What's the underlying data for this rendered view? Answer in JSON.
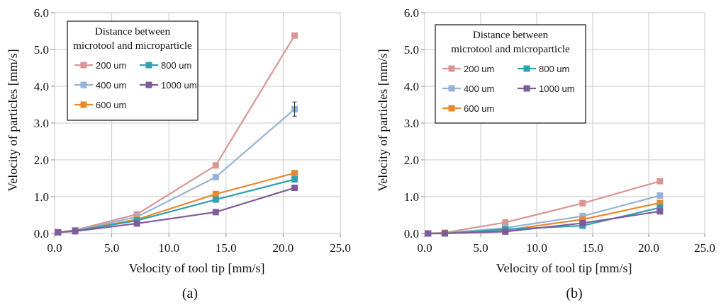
{
  "chart_data": [
    {
      "type": "line",
      "panel": "a",
      "panel_label": "(a)",
      "title": "",
      "xlabel": "Velocity of tool tip [mm/s]",
      "ylabel": "Velocity of particles [mm/s]",
      "xlim": [
        0,
        25
      ],
      "ylim": [
        0,
        6
      ],
      "xticks": [
        0,
        5,
        10,
        15,
        20,
        25
      ],
      "xtick_labels": [
        "0.0",
        "5.0",
        "10.0",
        "15.0",
        "20.0",
        "25.0"
      ],
      "yticks": [
        0,
        1,
        2,
        3,
        4,
        5,
        6
      ],
      "ytick_labels": [
        "0.0",
        "1.0",
        "2.0",
        "3.0",
        "4.0",
        "5.0",
        "6.0"
      ],
      "grid": true,
      "legend": {
        "title_lines": [
          "Distance between",
          "microtool and microparticle"
        ],
        "placement": "top-left"
      },
      "series": [
        {
          "name": "200 um",
          "color": "#D99694",
          "x": [
            0.3,
            1.8,
            7.2,
            14.1,
            21.0
          ],
          "values": [
            0.03,
            0.09,
            0.52,
            1.85,
            5.38
          ]
        },
        {
          "name": "400 um",
          "color": "#95B3D7",
          "x": [
            0.3,
            1.8,
            7.2,
            14.1,
            21.0
          ],
          "values": [
            0.03,
            0.08,
            0.45,
            1.53,
            3.38
          ]
        },
        {
          "name": "600 um",
          "color": "#E6892F",
          "x": [
            0.3,
            1.8,
            7.2,
            14.1,
            21.0
          ],
          "values": [
            0.03,
            0.07,
            0.38,
            1.07,
            1.64
          ]
        },
        {
          "name": "800 um",
          "color": "#31A0B1",
          "x": [
            0.3,
            1.8,
            7.2,
            14.1,
            21.0
          ],
          "values": [
            0.03,
            0.07,
            0.35,
            0.92,
            1.47
          ]
        },
        {
          "name": "1000 um",
          "color": "#7F5B9C",
          "x": [
            0.3,
            1.8,
            7.2,
            14.1,
            21.0
          ],
          "values": [
            0.03,
            0.06,
            0.27,
            0.58,
            1.24
          ]
        }
      ]
    },
    {
      "type": "line",
      "panel": "b",
      "panel_label": "(b)",
      "title": "",
      "xlabel": "Velocity of tool tip [mm/s]",
      "ylabel": "Velocity of particles [mm/s]",
      "xlim": [
        0,
        25
      ],
      "ylim": [
        0,
        6
      ],
      "xticks": [
        0,
        5,
        10,
        15,
        20,
        25
      ],
      "xtick_labels": [
        "0.0",
        "5.0",
        "10.0",
        "15.0",
        "20.0",
        "25.0"
      ],
      "yticks": [
        0,
        1,
        2,
        3,
        4,
        5,
        6
      ],
      "ytick_labels": [
        "0.0",
        "1.0",
        "2.0",
        "3.0",
        "4.0",
        "5.0",
        "6.0"
      ],
      "grid": true,
      "legend": {
        "title_lines": [
          "Distance between",
          "microtool and microparticle"
        ],
        "placement": "top-left"
      },
      "series": [
        {
          "name": "200 um",
          "color": "#D99694",
          "x": [
            0.3,
            1.8,
            7.2,
            14.1,
            21.0
          ],
          "values": [
            0.0,
            0.02,
            0.3,
            0.82,
            1.42
          ]
        },
        {
          "name": "400 um",
          "color": "#95B3D7",
          "x": [
            0.3,
            1.8,
            7.2,
            14.1,
            21.0
          ],
          "values": [
            0.0,
            0.01,
            0.15,
            0.47,
            1.03
          ]
        },
        {
          "name": "600 um",
          "color": "#E6892F",
          "x": [
            0.3,
            1.8,
            7.2,
            14.1,
            21.0
          ],
          "values": [
            0.0,
            0.01,
            0.09,
            0.38,
            0.83
          ]
        },
        {
          "name": "800 um",
          "color": "#31A0B1",
          "x": [
            0.3,
            1.8,
            7.2,
            14.1,
            21.0
          ],
          "values": [
            0.0,
            0.0,
            0.11,
            0.21,
            0.7
          ]
        },
        {
          "name": "1000 um",
          "color": "#7F5B9C",
          "x": [
            0.3,
            1.8,
            7.2,
            14.1,
            21.0
          ],
          "values": [
            0.0,
            0.0,
            0.05,
            0.28,
            0.6
          ]
        }
      ]
    }
  ]
}
